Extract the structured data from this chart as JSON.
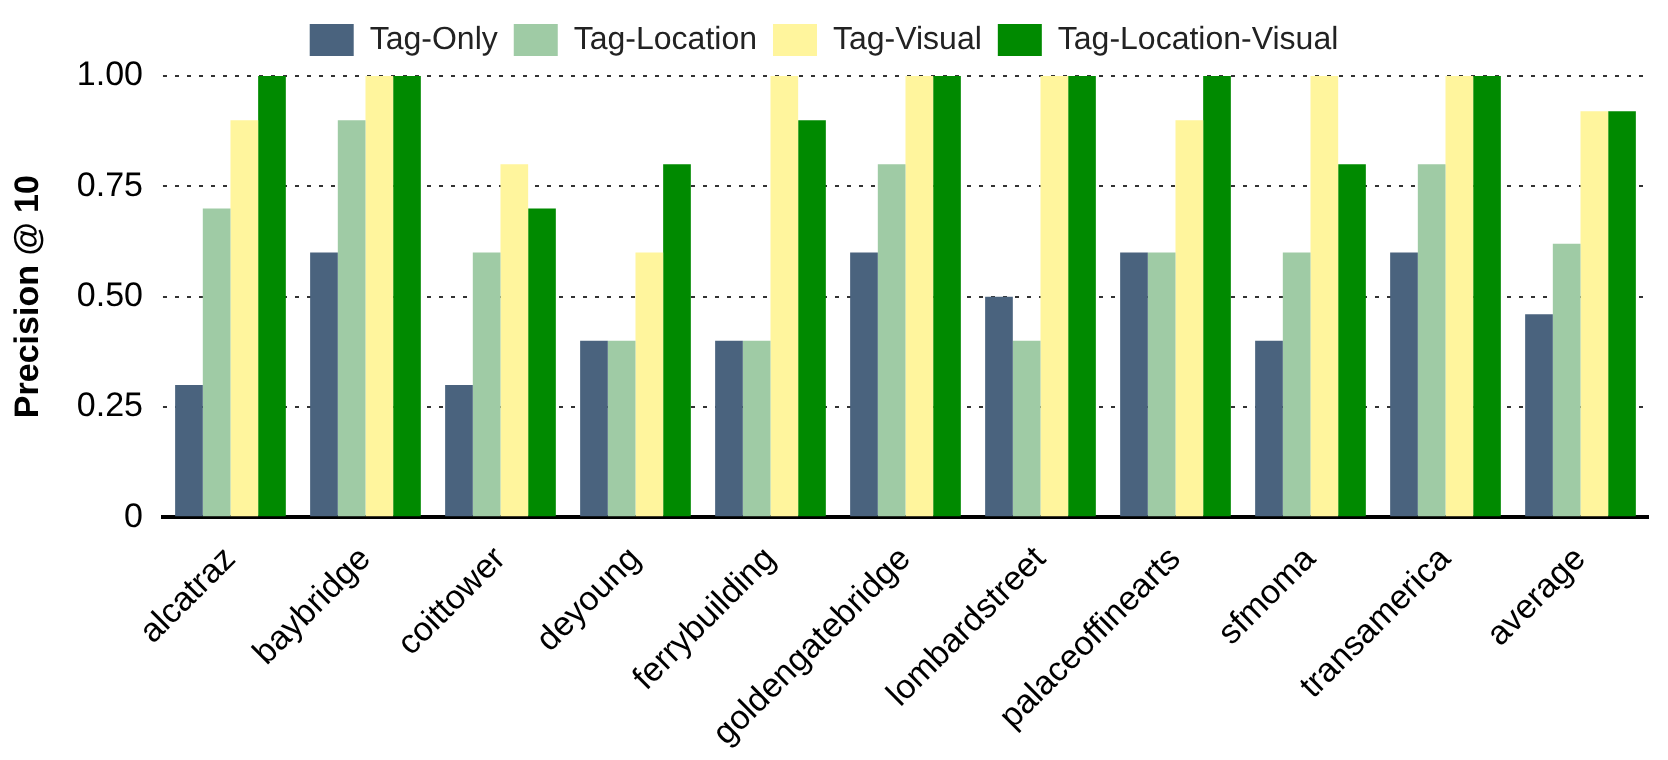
{
  "chart_data": {
    "type": "bar",
    "ylabel": "Precision @ 10",
    "categories": [
      "alcatraz",
      "baybridge",
      "coittower",
      "deyoung",
      "ferrybuilding",
      "goldengatebridge",
      "lombardstreet",
      "palaceoffinearts",
      "sfmoma",
      "transamerica",
      "average"
    ],
    "series": [
      {
        "name": "Tag-Only",
        "color": "#4a637e",
        "values": [
          0.3,
          0.6,
          0.3,
          0.4,
          0.4,
          0.6,
          0.5,
          0.6,
          0.4,
          0.6,
          0.46
        ]
      },
      {
        "name": "Tag-Location",
        "color": "#9fcba5",
        "values": [
          0.7,
          0.9,
          0.6,
          0.4,
          0.4,
          0.8,
          0.4,
          0.6,
          0.6,
          0.8,
          0.62
        ]
      },
      {
        "name": "Tag-Visual",
        "color": "#fff59d",
        "values": [
          0.9,
          1.0,
          0.8,
          0.6,
          1.0,
          1.0,
          1.0,
          0.9,
          1.0,
          1.0,
          0.92
        ]
      },
      {
        "name": "Tag-Location-Visual",
        "color": "#008a00",
        "values": [
          1.0,
          1.0,
          0.7,
          0.8,
          0.9,
          1.0,
          1.0,
          1.0,
          0.8,
          1.0,
          0.92
        ]
      }
    ],
    "ylim": [
      0,
      1
    ],
    "yticks": [
      0,
      {
        "value": 0.25,
        "label": "0.25"
      },
      {
        "value": 0.5,
        "label": "0.50"
      },
      {
        "value": 0.75,
        "label": "0.75"
      },
      {
        "value": 1,
        "label": "1.00"
      }
    ],
    "grid": "y",
    "legend": "top"
  }
}
